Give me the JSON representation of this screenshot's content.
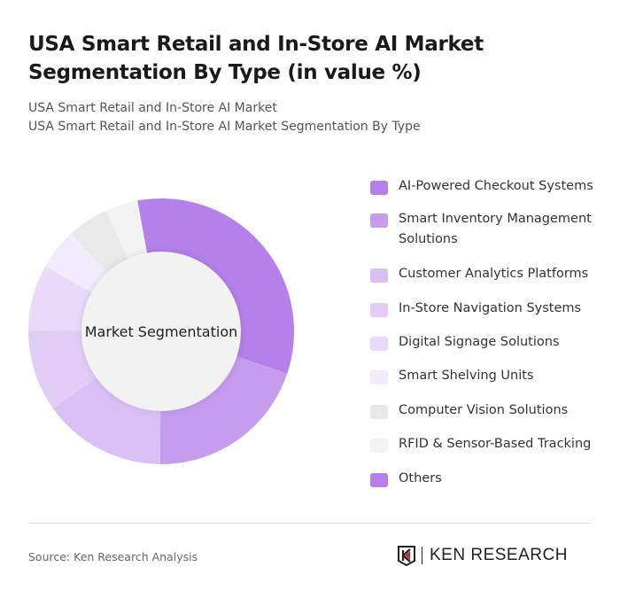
{
  "title": "USA Smart Retail and In-Store AI Market Segmentation By Type (in value %)",
  "subtitle_1": "USA Smart Retail and In-Store AI Market",
  "subtitle_2": "USA Smart Retail and In-Store AI Market Segmentation By Type",
  "source": "Source: Ken Research Analysis",
  "logo_text": "KEN RESEARCH",
  "chart_data": {
    "type": "pie",
    "variant": "donut",
    "center_label": "Market Segmentation",
    "legend_position": "right",
    "unit": "%",
    "categories": [
      "AI-Powered Checkout Systems",
      "Smart Inventory Management Solutions",
      "Customer Analytics Platforms",
      "In-Store Navigation Systems",
      "Digital Signage Solutions",
      "Smart Shelving Units",
      "Computer Vision Solutions",
      "RFID & Sensor-Based Tracking",
      "Others"
    ],
    "values": [
      33,
      20,
      15,
      10,
      8,
      5,
      5,
      4,
      0
    ],
    "colors": [
      "#b580ea",
      "#c59cee",
      "#dac0f5",
      "#e2cdf7",
      "#ead9f9",
      "#f2ebfc",
      "#e9e9e9",
      "#f3f3f3",
      "#b580ea"
    ]
  }
}
